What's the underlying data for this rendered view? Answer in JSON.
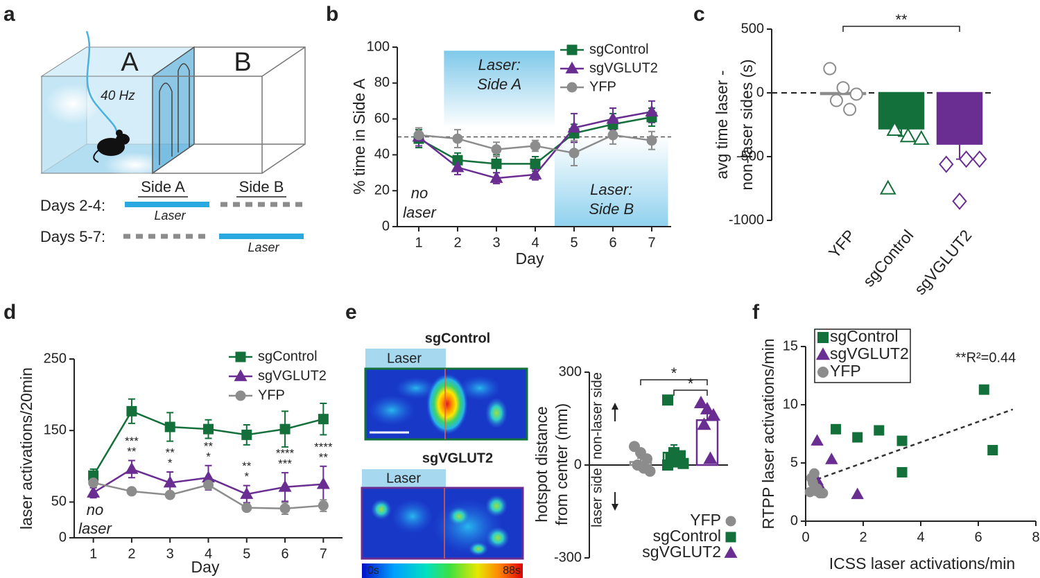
{
  "panel_labels": [
    "a",
    "b",
    "c",
    "d",
    "e",
    "f"
  ],
  "schematic": {
    "chambers": [
      "A",
      "B"
    ],
    "frequency": "40 Hz",
    "sides": [
      "Side A",
      "Side B"
    ],
    "schedule": [
      {
        "label": "Days 2-4:",
        "laser": "Laser"
      },
      {
        "label": "Days 5-7:",
        "laser": "Laser"
      }
    ]
  },
  "heatmaps": {
    "panels": [
      {
        "title": "sgControl",
        "color": "#14703a"
      },
      {
        "title": "sgVGLUT2",
        "color": "#6a2d91"
      }
    ],
    "laser_tag": "Laser",
    "colorbar_lim": [
      0,
      88
    ],
    "colorbar_ticks": [
      {
        "value": 0,
        "label": "0s"
      },
      {
        "value": 88,
        "label": "88s"
      }
    ]
  },
  "chart_data": [
    {
      "type": "line",
      "ylabel": "% time in Side A",
      "xlabel": "Day",
      "x": [
        1,
        2,
        3,
        4,
        5,
        6,
        7
      ],
      "xlim": [
        0.5,
        7.5
      ],
      "xticks": [
        1,
        2,
        3,
        4,
        5,
        6,
        7
      ],
      "ylim": [
        0,
        100
      ],
      "yticks": [
        0,
        20,
        40,
        60,
        80,
        100
      ],
      "reference_line": 50,
      "legend": "upper right",
      "regions": [
        {
          "label": [
            "Laser:",
            "Side A"
          ],
          "x": [
            1.65,
            4.5
          ],
          "y": [
            55,
            98
          ],
          "fade": "down"
        },
        {
          "label": [
            "Laser:",
            "Side B"
          ],
          "x": [
            4.5,
            7.42
          ],
          "y": [
            0,
            50
          ],
          "fade": "up"
        }
      ],
      "annotation": [
        "no",
        "laser"
      ],
      "series": [
        {
          "name": "sgControl",
          "color": "#14703a",
          "marker": "square",
          "values": [
            49,
            37,
            35,
            35,
            52,
            57,
            61
          ],
          "errors": [
            5,
            4,
            5,
            4,
            5,
            6,
            5
          ]
        },
        {
          "name": "sgVGLUT2",
          "color": "#6a2d91",
          "marker": "triangle",
          "values": [
            50,
            33,
            27,
            29,
            55,
            60,
            64
          ],
          "errors": [
            5,
            4,
            3,
            3,
            8,
            6,
            6
          ]
        },
        {
          "name": "YFP",
          "color": "#8c8c8c",
          "marker": "circle",
          "values": [
            51,
            49,
            43,
            45,
            41,
            51,
            48
          ],
          "errors": [
            4,
            5,
            4,
            3,
            7,
            5,
            5
          ]
        }
      ]
    },
    {
      "type": "bar-scatter",
      "ylabel": [
        "avg time laser -",
        "non-laser sides (s)"
      ],
      "ylim": [
        -1000,
        500
      ],
      "yticks": [
        -1000,
        -500,
        0,
        500
      ],
      "reference_line": 0,
      "reference_style": "dashed",
      "bar_style": "filled",
      "significance": [
        {
          "pair": [
            0,
            2
          ],
          "label": "**"
        }
      ],
      "series": [
        {
          "name": "YFP",
          "color": "#8c8c8c",
          "marker": "circle",
          "mean": -10,
          "values": [
            190,
            40,
            -10,
            -60,
            -130
          ],
          "filled": [
            false,
            false,
            false,
            false,
            false
          ]
        },
        {
          "name": "sgControl",
          "color": "#14703a",
          "marker": "triangle",
          "mean": -280,
          "error": 60,
          "values": [
            -90,
            -90,
            -90,
            -290,
            -340,
            -360,
            -750
          ],
          "filled": [
            true,
            true,
            true,
            false,
            false,
            false,
            false
          ]
        },
        {
          "name": "sgVGLUT2",
          "color": "#6a2d91",
          "marker": "diamond",
          "mean": -400,
          "error": 120,
          "values": [
            -90,
            -160,
            -240,
            -320,
            -520,
            -520,
            -560,
            -850
          ],
          "filled": [
            true,
            true,
            true,
            true,
            false,
            false,
            false,
            false
          ]
        }
      ]
    },
    {
      "type": "line",
      "ylabel": "laser activations/20min",
      "xlabel": "Day",
      "x": [
        1,
        2,
        3,
        4,
        5,
        6,
        7
      ],
      "xlim": [
        0.5,
        7.5
      ],
      "xticks": [
        1,
        2,
        3,
        4,
        5,
        6,
        7
      ],
      "ylim": [
        0,
        250
      ],
      "yticks": [
        0,
        50,
        150,
        250
      ],
      "legend": "upper right",
      "annotation": [
        "no",
        "laser"
      ],
      "series": [
        {
          "name": "sgControl",
          "color": "#14703a",
          "marker": "square",
          "values": [
            87,
            177,
            155,
            152,
            144,
            152,
            166
          ],
          "errors": [
            9,
            17,
            20,
            13,
            14,
            25,
            22
          ]
        },
        {
          "name": "sgVGLUT2",
          "color": "#6a2d91",
          "marker": "triangle",
          "values": [
            63,
            96,
            77,
            84,
            61,
            71,
            75
          ],
          "errors": [
            7,
            12,
            15,
            17,
            12,
            20,
            25
          ],
          "stars": [
            null,
            "**",
            "*",
            "*",
            "*",
            "***",
            "**"
          ]
        },
        {
          "name": "YFP",
          "color": "#8c8c8c",
          "marker": "circle",
          "values": [
            77,
            65,
            60,
            74,
            42,
            41,
            45
          ],
          "errors": [
            5,
            3,
            4,
            6,
            3,
            8,
            8
          ],
          "stars": [
            null,
            "***",
            "**",
            "**",
            "**",
            "****",
            "****"
          ]
        }
      ]
    },
    {
      "type": "bar-scatter",
      "ylabel": [
        "hotspot distance",
        "from center (mm)"
      ],
      "ylim": [
        -300,
        300
      ],
      "yticks": [
        -300,
        0,
        300
      ],
      "reference_line": 0,
      "reference_style": "solid",
      "bar_style": "outline",
      "annotations": [
        "non-laser side",
        "laser side"
      ],
      "legend": "lower right",
      "significance": [
        {
          "pair": [
            0,
            2
          ],
          "label": "*"
        },
        {
          "pair": [
            1,
            2
          ],
          "label": "*"
        }
      ],
      "series": [
        {
          "name": "YFP",
          "color": "#8c8c8c",
          "marker": "circle",
          "mean": 10,
          "error": 12,
          "values": [
            60,
            40,
            20,
            0,
            -10,
            -20
          ],
          "filled": [
            true,
            true,
            true,
            true,
            true,
            true
          ]
        },
        {
          "name": "sgControl",
          "color": "#14703a",
          "marker": "square",
          "mean": 40,
          "error": 25,
          "values": [
            210,
            40,
            30,
            20,
            10,
            5,
            0
          ],
          "filled": [
            true,
            true,
            true,
            true,
            true,
            true,
            true
          ]
        },
        {
          "name": "sgVGLUT2",
          "color": "#6a2d91",
          "marker": "triangle",
          "mean": 145,
          "error": 35,
          "values": [
            200,
            180,
            160,
            130,
            20
          ],
          "filled": [
            true,
            true,
            true,
            true,
            true
          ]
        }
      ]
    },
    {
      "type": "scatter",
      "ylabel": "RTPP laser activations/min",
      "xlabel": "ICSS laser activations/min",
      "xlim": [
        0,
        8
      ],
      "xticks": [
        0,
        2,
        4,
        6,
        8
      ],
      "ylim": [
        0,
        15
      ],
      "yticks": [
        0,
        5,
        10,
        15
      ],
      "legend": "upper left",
      "annotation": "**R²=0.44",
      "fit": {
        "x": [
          0.4,
          7.2
        ],
        "y": [
          3.6,
          9.6
        ]
      },
      "series": [
        {
          "name": "sgControl",
          "color": "#14703a",
          "marker": "square",
          "x": [
            1.05,
            1.8,
            2.55,
            3.35,
            3.35,
            6.2,
            6.5
          ],
          "values": [
            7.9,
            7.2,
            7.8,
            6.9,
            4.2,
            11.3,
            6.1
          ]
        },
        {
          "name": "sgVGLUT2",
          "color": "#6a2d91",
          "marker": "triangle",
          "x": [
            0.4,
            0.9,
            0.4,
            1.8,
            0.45
          ],
          "values": [
            6.9,
            5.3,
            3.5,
            2.3,
            3.2
          ]
        },
        {
          "name": "YFP",
          "color": "#8c8c8c",
          "marker": "circle",
          "x": [
            0.2,
            0.3,
            0.25,
            0.4,
            0.15,
            0.5,
            0.6,
            0.35
          ],
          "values": [
            3.7,
            4.1,
            3.3,
            2.8,
            2.5,
            2.4,
            2.4,
            2.6
          ]
        }
      ]
    }
  ]
}
